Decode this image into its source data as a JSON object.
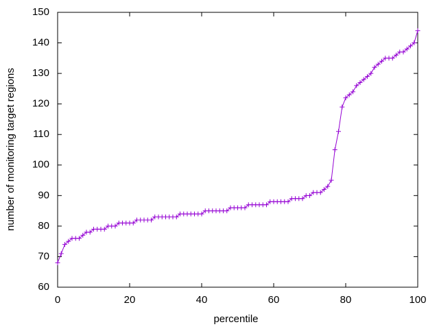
{
  "chart_data": {
    "type": "line",
    "xlabel": "percentile",
    "ylabel": "number of monitoring target regions",
    "x": [
      0,
      1,
      2,
      3,
      4,
      5,
      6,
      7,
      8,
      9,
      10,
      11,
      12,
      13,
      14,
      15,
      16,
      17,
      18,
      19,
      20,
      21,
      22,
      23,
      24,
      25,
      26,
      27,
      28,
      29,
      30,
      31,
      32,
      33,
      34,
      35,
      36,
      37,
      38,
      39,
      40,
      41,
      42,
      43,
      44,
      45,
      46,
      47,
      48,
      49,
      50,
      51,
      52,
      53,
      54,
      55,
      56,
      57,
      58,
      59,
      60,
      61,
      62,
      63,
      64,
      65,
      66,
      67,
      68,
      69,
      70,
      71,
      72,
      73,
      74,
      75,
      76,
      77,
      78,
      79,
      80,
      81,
      82,
      83,
      84,
      85,
      86,
      87,
      88,
      89,
      90,
      91,
      92,
      93,
      94,
      95,
      96,
      97,
      98,
      99,
      100
    ],
    "values": [
      68,
      71,
      74,
      75,
      76,
      76,
      76,
      77,
      78,
      78,
      79,
      79,
      79,
      79,
      80,
      80,
      80,
      81,
      81,
      81,
      81,
      81,
      82,
      82,
      82,
      82,
      82,
      83,
      83,
      83,
      83,
      83,
      83,
      83,
      84,
      84,
      84,
      84,
      84,
      84,
      84,
      85,
      85,
      85,
      85,
      85,
      85,
      85,
      86,
      86,
      86,
      86,
      86,
      87,
      87,
      87,
      87,
      87,
      87,
      88,
      88,
      88,
      88,
      88,
      88,
      89,
      89,
      89,
      89,
      90,
      90,
      91,
      91,
      91,
      92,
      93,
      95,
      105,
      111,
      119,
      122,
      123,
      124,
      126,
      127,
      128,
      129,
      130,
      132,
      133,
      134,
      135,
      135,
      135,
      136,
      137,
      137,
      138,
      139,
      140,
      144
    ],
    "color": "#9400d3",
    "xlim": [
      0,
      100
    ],
    "xticks": [
      0,
      20,
      40,
      60,
      80,
      100
    ],
    "ylim": [
      60,
      150
    ],
    "yticks": [
      60,
      70,
      80,
      90,
      100,
      110,
      120,
      130,
      140,
      150
    ],
    "grid": false
  }
}
